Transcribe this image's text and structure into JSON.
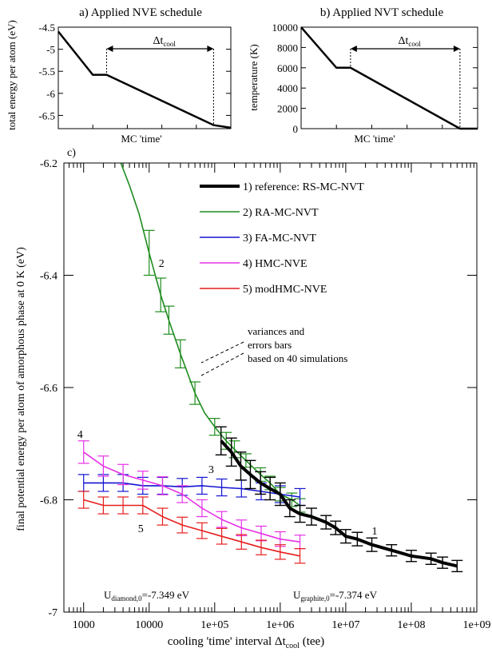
{
  "chart_data": [
    {
      "panel": "a",
      "type": "line",
      "title": "a) Applied NVE schedule",
      "xlabel": "MC 'time'",
      "ylabel": "total energy per atom (eV)",
      "ylim": [
        -6.8,
        -4.5
      ],
      "yticks": [
        "-4.5",
        "-5",
        "-5.5",
        "-6",
        "-6.5"
      ],
      "ytick_values": [
        -4.5,
        -5,
        -5.5,
        -6,
        -6.5
      ],
      "xlim": [
        0,
        1
      ],
      "annotation": {
        "label": "Δt",
        "subscript": "cool",
        "from": 0.28,
        "to": 0.9
      },
      "series": [
        {
          "values": [
            [
              0,
              -4.6
            ],
            [
              0.2,
              -5.58
            ],
            [
              0.28,
              -5.58
            ],
            [
              0.9,
              -6.72
            ],
            [
              1,
              -6.78
            ]
          ]
        }
      ]
    },
    {
      "panel": "b",
      "type": "line",
      "title": "b) Applied NVT schedule",
      "xlabel": "MC 'time'",
      "ylabel": "temperature (K)",
      "ylim": [
        0,
        10000
      ],
      "yticks": [
        "0",
        "2000",
        "4000",
        "6000",
        "8000",
        "10000"
      ],
      "ytick_values": [
        0,
        2000,
        4000,
        6000,
        8000,
        10000
      ],
      "xlim": [
        0,
        1
      ],
      "annotation": {
        "label": "Δt",
        "subscript": "cool",
        "from": 0.28,
        "to": 0.9
      },
      "series": [
        {
          "values": [
            [
              0,
              10000
            ],
            [
              0.2,
              6000
            ],
            [
              0.28,
              6000
            ],
            [
              0.9,
              0
            ],
            [
              1,
              0
            ]
          ]
        }
      ]
    },
    {
      "panel": "c",
      "type": "line",
      "panel_label": "c)",
      "xlabel": "cooling 'time' interval Δt",
      "xlabel_sub": "cool",
      "xlabel_suffix": " (tee)",
      "ylabel": "final potential energy per atom of amorphous phase at 0 K (eV)",
      "xscale": "log",
      "xlim": [
        500,
        1000000000
      ],
      "ylim": [
        -7,
        -6.2
      ],
      "xticks": [
        "1000",
        "10000",
        "1e+05",
        "1e+06",
        "1e+07",
        "1e+08",
        "1e+09"
      ],
      "xtick_values": [
        1000,
        10000,
        100000,
        1000000,
        10000000,
        100000000,
        1000000000
      ],
      "yticks": [
        "-7",
        "-6.8",
        "-6.6",
        "-6.4",
        "-6.2"
      ],
      "ytick_values": [
        -7,
        -6.8,
        -6.6,
        -6.4,
        -6.2
      ],
      "legend_position": "top-right",
      "annotation_text": [
        "variances and",
        "errors bars",
        "based on 40 simulations"
      ],
      "ref_labels": [
        {
          "main": "U",
          "sub": "diamond,0",
          "rest": "=-7.349 eV"
        },
        {
          "main": "U",
          "sub": "graphite,0",
          "rest": "=-7.374 eV"
        }
      ],
      "series": [
        {
          "name": "1) reference: RS-MC-NVT",
          "tag": "1",
          "color": "#000000",
          "width": 4,
          "x": [
            125000,
            180000,
            250000,
            350000,
            500000,
            700000,
            1000000,
            1400000,
            2000000,
            3000000,
            5000000,
            7000000,
            10000000,
            15000000,
            25000000,
            50000000,
            100000000,
            200000000,
            300000000,
            500000000
          ],
          "y": [
            -6.695,
            -6.715,
            -6.74,
            -6.755,
            -6.77,
            -6.78,
            -6.79,
            -6.815,
            -6.825,
            -6.83,
            -6.84,
            -6.85,
            -6.865,
            -6.87,
            -6.88,
            -6.89,
            -6.9,
            -6.905,
            -6.912,
            -6.918
          ],
          "err": [
            0.025,
            0.025,
            0.025,
            0.025,
            0.02,
            0.02,
            0.02,
            0.015,
            0.015,
            0.015,
            0.012,
            0.012,
            0.012,
            0.012,
            0.012,
            0.01,
            0.01,
            0.01,
            0.01,
            0.01
          ]
        },
        {
          "name": "2) RA-MC-NVT",
          "tag": "2",
          "color": "#1e8c1e",
          "width": 1.6,
          "x": [
            3700,
            5000,
            7000,
            10000,
            15000,
            20000,
            30000,
            50000,
            70000,
            100000,
            150000,
            200000,
            300000,
            500000,
            700000,
            1000000,
            1500000,
            2000000
          ],
          "y": [
            -6.2,
            -6.24,
            -6.29,
            -6.36,
            -6.435,
            -6.48,
            -6.54,
            -6.61,
            -6.645,
            -6.67,
            -6.695,
            -6.71,
            -6.73,
            -6.755,
            -6.77,
            -6.79,
            -6.8,
            -6.81
          ],
          "err": [
            0,
            0,
            0,
            0.04,
            0.03,
            0.025,
            0.025,
            0.02,
            0.02,
            0.015,
            0.015,
            0.015,
            0.012,
            0.012,
            0.012,
            0.012,
            0.012,
            0.012
          ],
          "bars": [
            0,
            0,
            0,
            1,
            1,
            1,
            1,
            1,
            0,
            1,
            1,
            1,
            1,
            1,
            1,
            1,
            1,
            1
          ]
        },
        {
          "name": "3) FA-MC-NVT",
          "tag": "3",
          "color": "#1414d2",
          "width": 1.6,
          "x": [
            1000,
            2000,
            4000,
            8000,
            16000,
            32000,
            64000,
            128000,
            256000,
            512000,
            1000000,
            2000000
          ],
          "y": [
            -6.77,
            -6.77,
            -6.77,
            -6.775,
            -6.775,
            -6.777,
            -6.775,
            -6.778,
            -6.78,
            -6.785,
            -6.79,
            -6.795
          ],
          "err": [
            0.015,
            0.015,
            0.015,
            0.015,
            0.015,
            0.015,
            0.015,
            0.015,
            0.015,
            0.015,
            0.015,
            0.015
          ]
        },
        {
          "name": "4) HMC-NVE",
          "tag": "4",
          "color": "#e632e6",
          "width": 1.6,
          "x": [
            1000,
            2000,
            4000,
            8000,
            16000,
            32000,
            64000,
            128000,
            256000,
            512000,
            1000000,
            2000000
          ],
          "y": [
            -6.715,
            -6.74,
            -6.755,
            -6.765,
            -6.775,
            -6.79,
            -6.815,
            -6.835,
            -6.85,
            -6.86,
            -6.87,
            -6.875
          ],
          "err": [
            0.02,
            0.018,
            0.018,
            0.016,
            0.016,
            0.015,
            0.015,
            0.014,
            0.014,
            0.013,
            0.013,
            0.012
          ]
        },
        {
          "name": "5) modHMC-NVE",
          "tag": "5",
          "color": "#e61e1e",
          "width": 1.6,
          "x": [
            1000,
            2000,
            4000,
            8000,
            16000,
            32000,
            64000,
            128000,
            256000,
            512000,
            1000000,
            2000000
          ],
          "y": [
            -6.8,
            -6.81,
            -6.81,
            -6.81,
            -6.83,
            -6.845,
            -6.855,
            -6.865,
            -6.875,
            -6.885,
            -6.893,
            -6.9
          ],
          "err": [
            0.015,
            0.015,
            0.015,
            0.015,
            0.015,
            0.014,
            0.014,
            0.014,
            0.013,
            0.013,
            0.013,
            0.013
          ]
        }
      ]
    }
  ]
}
